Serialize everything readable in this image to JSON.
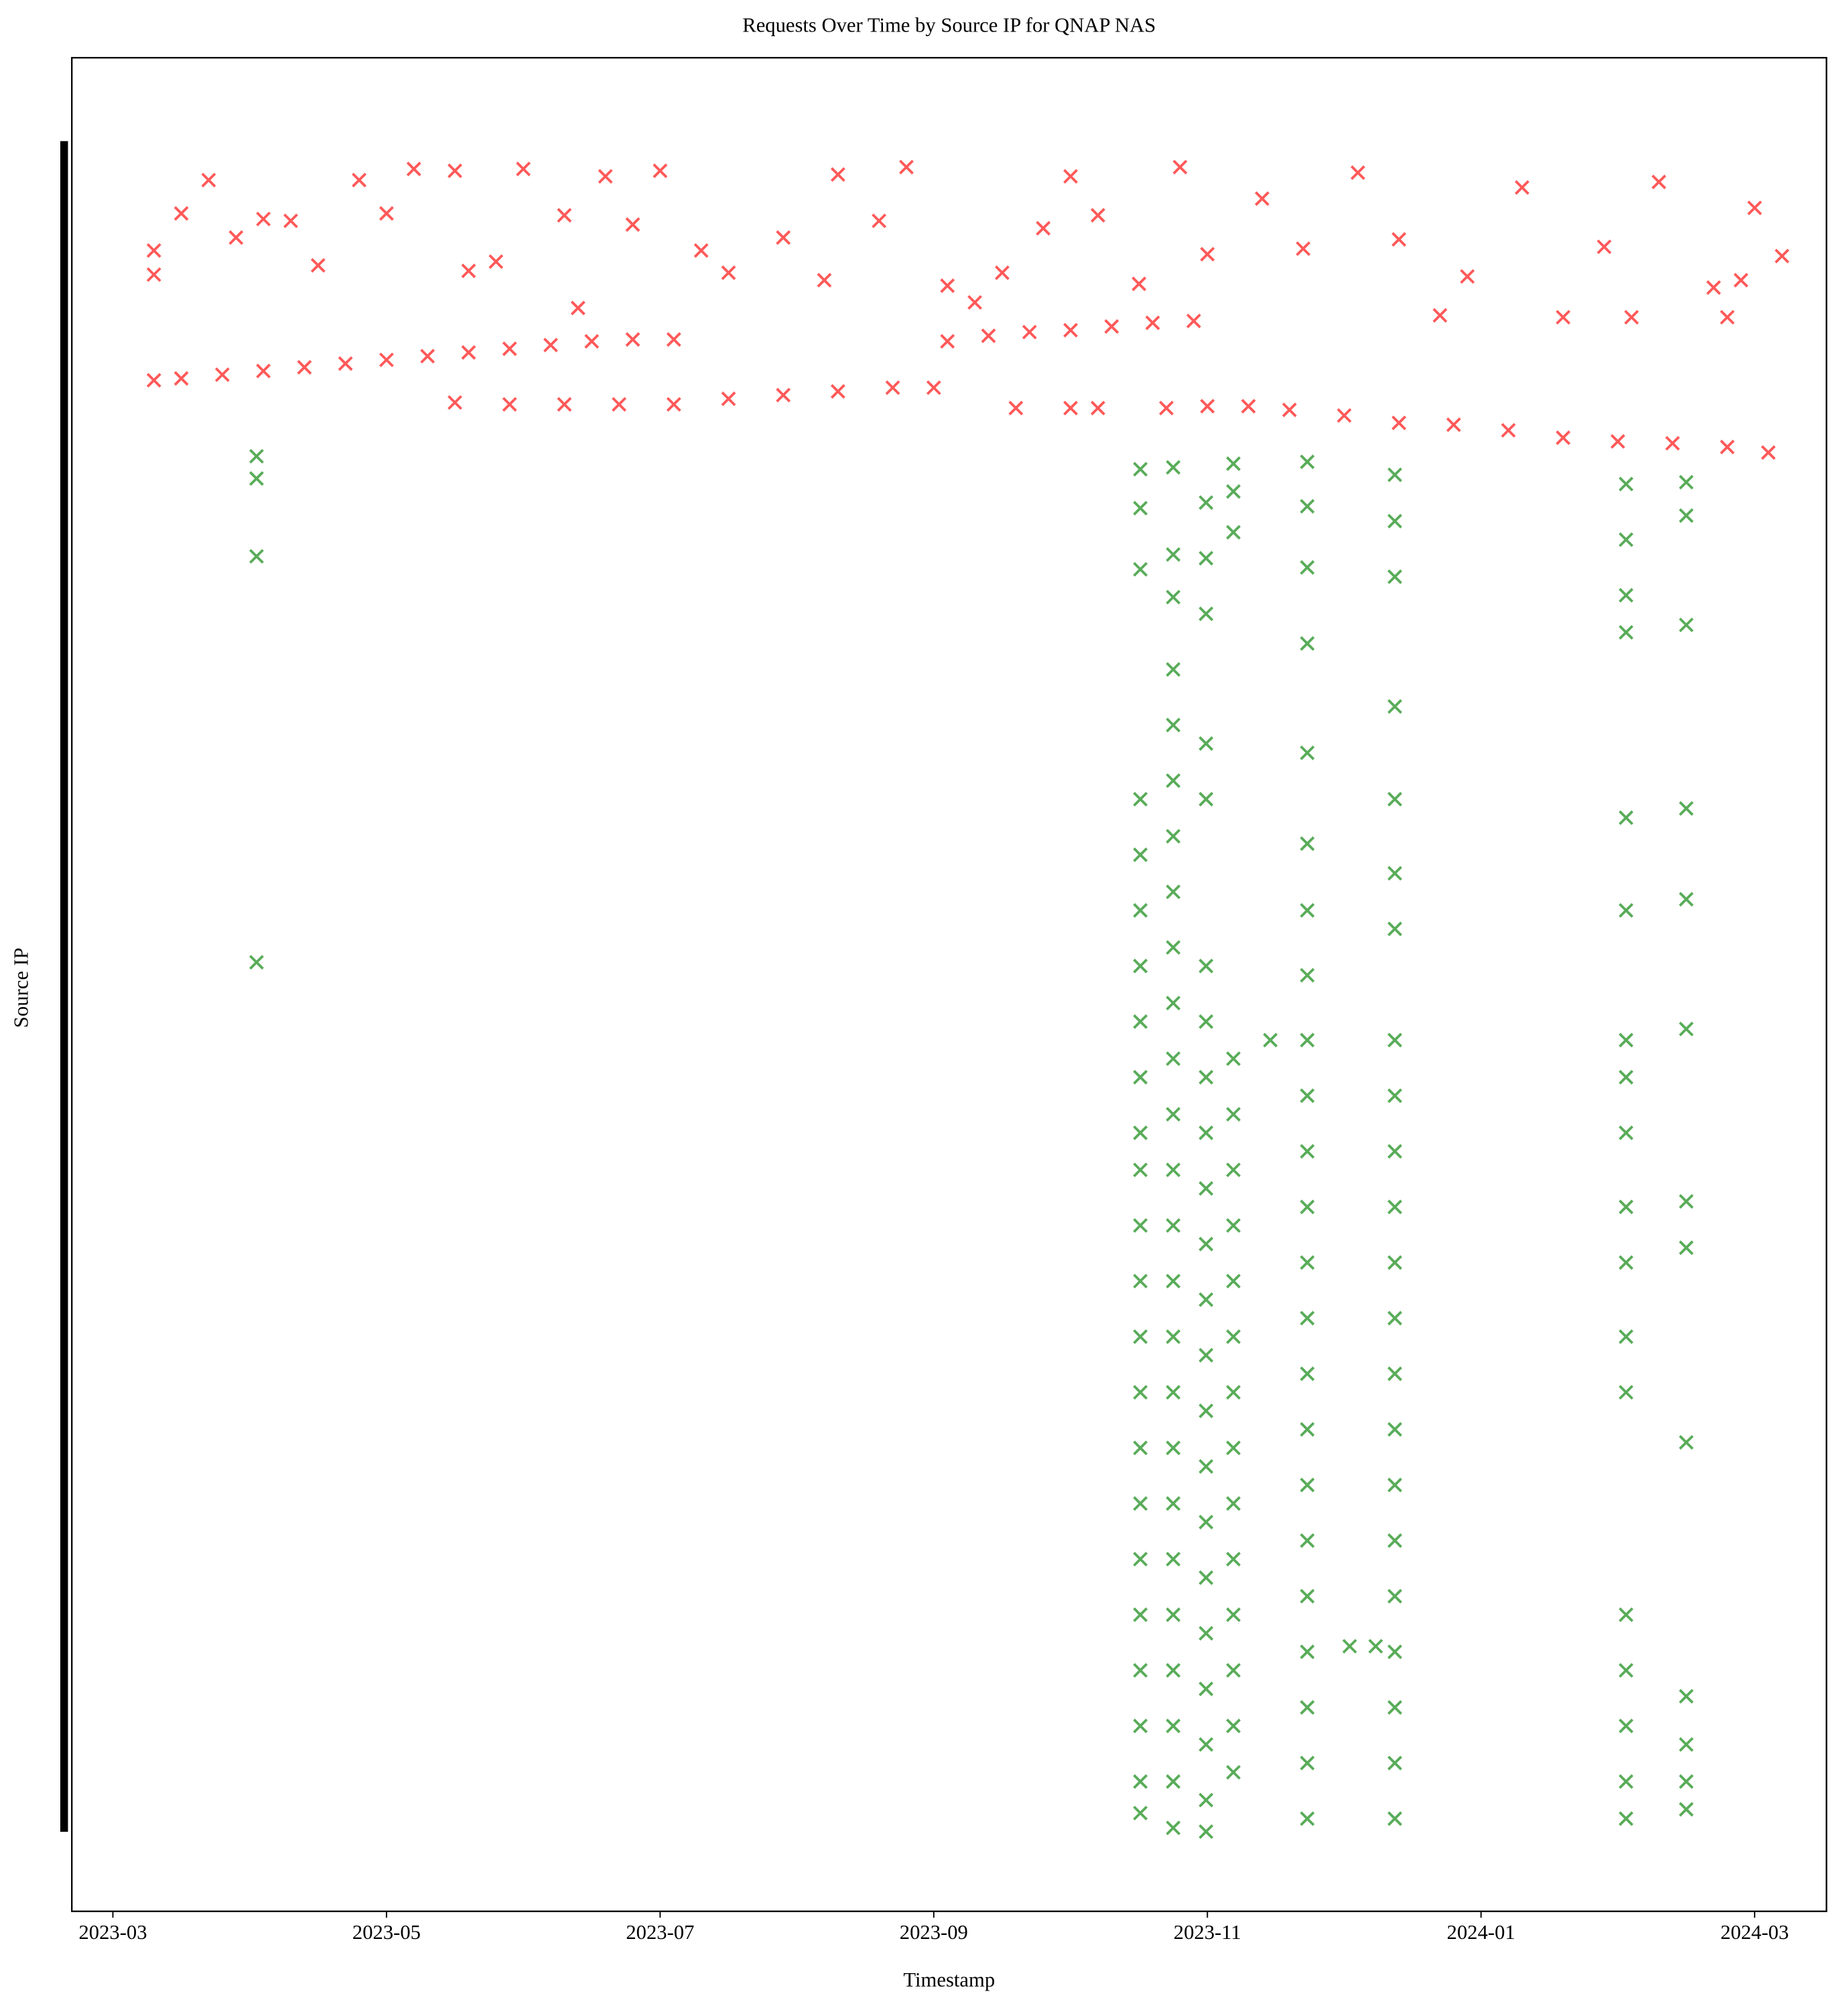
{
  "chart_data": {
    "type": "scatter",
    "title": "Requests Over Time by Source IP for QNAP NAS",
    "x_label": "Timestamp",
    "y_label": "Source IP",
    "xlim": [
      -0.3,
      12.525
    ],
    "ylim": [
      0,
      100
    ],
    "xticks": [
      {
        "value": 0,
        "label": "2023-03"
      },
      {
        "value": 2,
        "label": "2023-05"
      },
      {
        "value": 4,
        "label": "2023-07"
      },
      {
        "value": 6,
        "label": "2023-09"
      },
      {
        "value": 8,
        "label": "2023-11"
      },
      {
        "value": 10,
        "label": "2024-01"
      },
      {
        "value": 12,
        "label": "2024-03"
      }
    ],
    "marker": "x",
    "alpha": 0.65,
    "series": [
      {
        "color": "#ff0000",
        "x": [
          0.3,
          0.5,
          0.8,
          1.1,
          1.4,
          1.7,
          2.0,
          2.3,
          2.6,
          2.9,
          3.2,
          3.5,
          3.8,
          4.1,
          2.5,
          2.9,
          3.3,
          3.7,
          4.1,
          4.5,
          4.9,
          5.3,
          5.7,
          6.0,
          6.1,
          6.4,
          6.7,
          7.0,
          7.3,
          7.6,
          7.9,
          6.6,
          7.0,
          7.2,
          7.7,
          8.0,
          8.3,
          8.6,
          9.0,
          9.4,
          9.8,
          10.2,
          10.6,
          11.0,
          11.4,
          11.8,
          12.1,
          0.3,
          0.3,
          0.5,
          0.7,
          0.9,
          1.1,
          1.3,
          1.5,
          1.8,
          2.0,
          2.2,
          2.5,
          2.6,
          2.8,
          3.0,
          3.3,
          3.4,
          3.6,
          3.8,
          4.0,
          4.3,
          4.5,
          4.9,
          5.2,
          5.3,
          5.6,
          5.8,
          6.1,
          6.3,
          6.5,
          6.8,
          7.0,
          7.2,
          7.5,
          7.8,
          8.0,
          8.4,
          8.7,
          9.1,
          9.4,
          9.7,
          9.9,
          10.3,
          10.6,
          10.9,
          11.1,
          11.3,
          11.7,
          11.8,
          11.9,
          12.0,
          12.2
        ],
        "values": [
          82.6,
          82.7,
          82.9,
          83.1,
          83.3,
          83.5,
          83.7,
          83.9,
          84.1,
          84.3,
          84.5,
          84.7,
          84.8,
          84.8,
          81.4,
          81.3,
          81.3,
          81.3,
          81.3,
          81.6,
          81.8,
          82.0,
          82.2,
          82.2,
          84.7,
          85.0,
          85.2,
          85.3,
          85.5,
          85.7,
          85.8,
          81.1,
          81.1,
          81.1,
          81.1,
          81.2,
          81.2,
          81.0,
          80.7,
          80.3,
          80.2,
          79.9,
          79.5,
          79.3,
          79.2,
          79.0,
          78.7,
          89.6,
          88.3,
          91.6,
          93.4,
          90.3,
          91.3,
          91.2,
          88.8,
          93.4,
          91.6,
          94.0,
          93.9,
          88.5,
          89.0,
          94.0,
          91.5,
          86.5,
          93.6,
          91.0,
          93.9,
          89.6,
          88.4,
          90.3,
          88.0,
          93.7,
          91.2,
          94.1,
          87.7,
          86.8,
          88.4,
          90.8,
          93.6,
          91.5,
          87.8,
          94.1,
          89.4,
          92.4,
          89.7,
          93.8,
          90.2,
          86.1,
          88.2,
          93.0,
          86.0,
          89.8,
          86.0,
          93.3,
          87.6,
          86.0,
          88.0,
          91.9,
          89.3
        ]
      },
      {
        "color": "#008000",
        "x": [
          1.05,
          1.05,
          1.05,
          1.05,
          7.51,
          7.51,
          7.51,
          7.51,
          7.51,
          7.51,
          7.51,
          7.51,
          7.51,
          7.51,
          7.51,
          7.51,
          7.51,
          7.51,
          7.51,
          7.51,
          7.51,
          7.51,
          7.51,
          7.51,
          7.51,
          7.51,
          7.51,
          7.75,
          7.75,
          7.75,
          7.75,
          7.75,
          7.75,
          7.75,
          7.75,
          7.75,
          7.75,
          7.75,
          7.75,
          7.75,
          7.75,
          7.75,
          7.75,
          7.75,
          7.75,
          7.75,
          7.75,
          7.75,
          7.75,
          7.75,
          7.75,
          7.75,
          7.99,
          7.99,
          7.99,
          7.99,
          7.99,
          7.99,
          7.99,
          7.99,
          7.99,
          7.99,
          7.99,
          7.99,
          7.99,
          7.99,
          7.99,
          7.99,
          7.99,
          7.99,
          7.99,
          7.99,
          7.99,
          7.99,
          8.19,
          8.19,
          8.19,
          8.19,
          8.19,
          8.19,
          8.19,
          8.19,
          8.19,
          8.19,
          8.19,
          8.19,
          8.19,
          8.19,
          8.19,
          8.19,
          8.19,
          8.73,
          8.73,
          8.73,
          8.73,
          8.73,
          8.73,
          8.73,
          8.73,
          8.73,
          8.73,
          8.73,
          8.73,
          8.73,
          8.73,
          8.73,
          8.73,
          8.73,
          8.73,
          8.73,
          8.73,
          8.73,
          8.73,
          8.73,
          9.37,
          9.37,
          9.37,
          9.37,
          9.37,
          9.37,
          9.37,
          9.37,
          9.37,
          9.37,
          9.37,
          9.37,
          9.37,
          9.37,
          9.37,
          9.37,
          9.37,
          9.37,
          9.37,
          9.37,
          9.37,
          9.37,
          11.06,
          11.06,
          11.06,
          11.06,
          11.06,
          11.06,
          11.06,
          11.06,
          11.06,
          11.06,
          11.06,
          11.06,
          11.06,
          11.06,
          11.06,
          11.06,
          11.06,
          11.06,
          11.5,
          11.5,
          11.5,
          11.5,
          11.5,
          11.5,
          11.5,
          11.5,
          11.5,
          11.5,
          11.5,
          11.5,
          11.5,
          8.46,
          9.04,
          9.23
        ],
        "values": [
          78.5,
          77.3,
          73.1,
          51.2,
          77.8,
          75.7,
          72.4,
          60,
          57,
          54,
          51,
          48,
          45,
          42,
          40,
          37,
          34,
          31,
          28,
          25,
          22,
          19,
          16,
          13,
          10,
          7,
          5.3,
          77.9,
          73.2,
          70.9,
          67,
          64,
          61,
          58,
          55,
          52,
          49,
          46,
          43,
          40,
          37,
          34,
          31,
          28,
          25,
          22,
          19,
          16,
          13,
          10,
          7,
          4.5,
          76,
          73,
          70,
          63,
          60,
          51,
          48,
          45,
          42,
          39,
          36,
          33,
          30,
          27,
          24,
          21,
          18,
          15,
          12,
          9,
          6,
          4.3,
          78.1,
          76.6,
          74.4,
          46,
          43,
          40,
          37,
          34,
          31,
          28,
          25,
          22,
          19,
          16,
          13,
          10,
          7.5,
          78.2,
          75.8,
          72.5,
          68.4,
          62.5,
          57.6,
          54,
          50.5,
          47,
          44,
          41,
          38,
          35,
          32,
          29,
          26,
          23,
          20,
          17,
          14,
          11,
          8,
          5,
          77.5,
          75,
          72,
          65,
          60,
          56,
          53,
          47,
          44,
          41,
          38,
          35,
          32,
          29,
          26,
          23,
          20,
          17,
          14,
          11,
          8,
          5,
          77,
          74,
          71,
          69,
          59,
          54,
          47,
          45,
          42,
          38,
          35,
          31,
          28,
          16,
          13,
          10,
          7,
          5,
          77.1,
          75.3,
          69.4,
          59.5,
          54.6,
          47.6,
          38.3,
          35.8,
          25.3,
          11.6,
          9,
          7,
          5.5,
          47.0,
          14.3,
          14.3
        ]
      }
    ]
  }
}
